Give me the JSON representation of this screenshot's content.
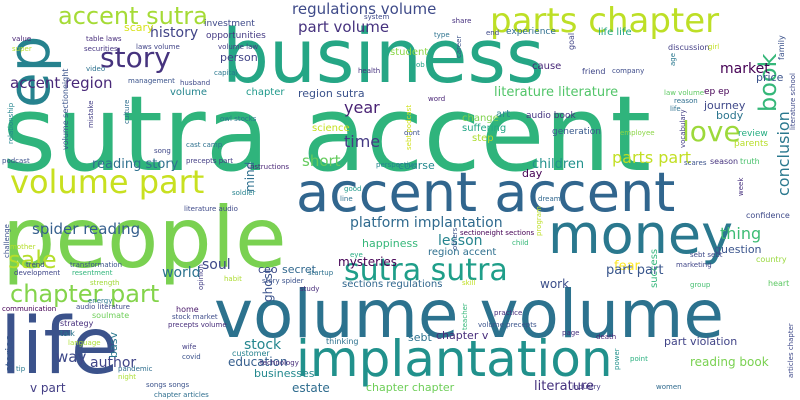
{
  "words": [
    {
      "text": "sutra accent",
      "color": "#2fb47c"
    },
    {
      "text": "business",
      "color": "#25a685"
    },
    {
      "text": "people",
      "color": "#7ad151"
    },
    {
      "text": "volume volume",
      "color": "#2c728e"
    },
    {
      "text": "accent accent",
      "color": "#31668e"
    },
    {
      "text": "implantation",
      "color": "#21918c"
    },
    {
      "text": "money",
      "color": "#2a788e"
    },
    {
      "text": "life",
      "color": "#3b528b"
    },
    {
      "text": "ep",
      "color": "#26828e"
    },
    {
      "text": "parts chapter",
      "color": "#bddf26"
    },
    {
      "text": "accent sutra",
      "color": "#a5db36"
    },
    {
      "text": "story",
      "color": "#46337e"
    },
    {
      "text": "volume part",
      "color": "#c8e020"
    },
    {
      "text": "sutra sutra",
      "color": "#1f9e89"
    },
    {
      "text": "love",
      "color": "#9dd93b"
    },
    {
      "text": "chapter part",
      "color": "#84d44b"
    },
    {
      "text": "book",
      "color": "#35b779"
    },
    {
      "text": "regulations volume",
      "color": "#3e4a89"
    },
    {
      "text": "part volume",
      "color": "#46327e"
    },
    {
      "text": "history",
      "color": "#414487"
    },
    {
      "text": "accent region",
      "color": "#482878"
    },
    {
      "text": "region sutra",
      "color": "#3b528b"
    },
    {
      "text": "spider reading",
      "color": "#355f8d"
    },
    {
      "text": "platform implantation",
      "color": "#306a8e"
    },
    {
      "text": "reading story",
      "color": "#2d708e"
    },
    {
      "text": "literature literature",
      "color": "#52c569"
    },
    {
      "text": "conclusion",
      "color": "#2a788e"
    },
    {
      "text": "market",
      "color": "#440154"
    },
    {
      "text": "year",
      "color": "#482173"
    },
    {
      "text": "time",
      "color": "#443983"
    },
    {
      "text": "short",
      "color": "#65cb5e"
    },
    {
      "text": "mind",
      "color": "#2e6f8e"
    },
    {
      "text": "soul",
      "color": "#3e4989"
    },
    {
      "text": "world",
      "color": "#2c728e"
    },
    {
      "text": "sale",
      "color": "#b5de2b"
    },
    {
      "text": "lesson",
      "color": "#25848e"
    },
    {
      "text": "happiness",
      "color": "#35b779"
    },
    {
      "text": "stock",
      "color": "#24868e"
    },
    {
      "text": "ceo",
      "color": "#3e4c8a"
    },
    {
      "text": "secret",
      "color": "#31688e"
    },
    {
      "text": "course",
      "color": "#23898e"
    },
    {
      "text": "children",
      "color": "#21918c"
    },
    {
      "text": "day",
      "color": "#440154"
    },
    {
      "text": "thing",
      "color": "#3dbc74"
    },
    {
      "text": "fear",
      "color": "#fde725"
    },
    {
      "text": "part part",
      "color": "#39568c"
    },
    {
      "text": "parts part",
      "color": "#c2df23"
    },
    {
      "text": "work",
      "color": "#3c4f8a"
    },
    {
      "text": "author",
      "color": "#404588"
    },
    {
      "text": "education",
      "color": "#355e8d"
    },
    {
      "text": "businesses",
      "color": "#23888e"
    },
    {
      "text": "literature",
      "color": "#46327e"
    },
    {
      "text": "reading book",
      "color": "#7ad151"
    },
    {
      "text": "chapter chapter",
      "color": "#6ece58"
    },
    {
      "text": "stories",
      "color": "#38588c"
    },
    {
      "text": "way",
      "color": "#3e4989"
    },
    {
      "text": "basv",
      "color": "#2a788e"
    },
    {
      "text": "estate",
      "color": "#2f6c8e"
    },
    {
      "text": "person",
      "color": "#414487"
    },
    {
      "text": "experience",
      "color": "#2e6e8e"
    },
    {
      "text": "life life",
      "color": "#21a585"
    },
    {
      "text": "science",
      "color": "#c5e021"
    },
    {
      "text": "chapter",
      "color": "#1f998a"
    },
    {
      "text": "volume",
      "color": "#25858e"
    },
    {
      "text": "ghost",
      "color": "#3b528b"
    },
    {
      "text": "mysteries",
      "color": "#440154"
    },
    {
      "text": "sections regulations",
      "color": "#31678e"
    },
    {
      "text": "chapter v",
      "color": "#472d7b"
    },
    {
      "text": "part violation",
      "color": "#414487"
    },
    {
      "text": "sebt",
      "color": "#2c718e"
    },
    {
      "text": "success",
      "color": "#32b67a"
    },
    {
      "text": "question",
      "color": "#3a548c"
    },
    {
      "text": "scary",
      "color": "#d8e219"
    },
    {
      "text": "investment",
      "color": "#3e4989"
    },
    {
      "text": "opportunities",
      "color": "#443983"
    },
    {
      "text": "journey",
      "color": "#3f4889"
    },
    {
      "text": "student",
      "color": "#8bd646"
    },
    {
      "text": "price",
      "color": "#3b528b"
    },
    {
      "text": "audio book",
      "color": "#453581"
    },
    {
      "text": "generation",
      "color": "#38598c"
    },
    {
      "text": "cause",
      "color": "#482878"
    },
    {
      "text": "art",
      "color": "#24878e"
    },
    {
      "text": "change",
      "color": "#7fd34e"
    },
    {
      "text": "suffering",
      "color": "#21a685"
    },
    {
      "text": "step",
      "color": "#addc30"
    },
    {
      "text": "review",
      "color": "#26ad81"
    },
    {
      "text": "parents",
      "color": "#b8de29"
    },
    {
      "text": "season",
      "color": "#46337e"
    },
    {
      "text": "truth",
      "color": "#4ac16d"
    },
    {
      "text": "body",
      "color": "#2b758e"
    },
    {
      "text": "confidence",
      "color": "#3e4a89"
    },
    {
      "text": "country",
      "color": "#99d83d"
    },
    {
      "text": "heart",
      "color": "#5cc863"
    },
    {
      "text": "family",
      "color": "#3b528b"
    },
    {
      "text": "ep ep",
      "color": "#440154"
    },
    {
      "text": "law volume",
      "color": "#5ec962"
    },
    {
      "text": "reason",
      "color": "#2e6e8e"
    },
    {
      "text": "friend",
      "color": "#3f4788"
    },
    {
      "text": "company",
      "color": "#3e4c8a"
    },
    {
      "text": "discussion",
      "color": "#433e85"
    },
    {
      "text": "goal",
      "color": "#414487"
    },
    {
      "text": "health",
      "color": "#46327e"
    },
    {
      "text": "job",
      "color": "#1fa187"
    },
    {
      "text": "word",
      "color": "#482475"
    },
    {
      "text": "dont",
      "color": "#3c4f8a"
    },
    {
      "text": "perspective",
      "color": "#25858e"
    },
    {
      "text": "good",
      "color": "#1f9a8a"
    },
    {
      "text": "line",
      "color": "#2c718e"
    },
    {
      "text": "dream",
      "color": "#31678e"
    },
    {
      "text": "week",
      "color": "#46307e"
    },
    {
      "text": "eye",
      "color": "#25ac82"
    },
    {
      "text": "skill",
      "color": "#c0df25"
    },
    {
      "text": "child",
      "color": "#36b878"
    },
    {
      "text": "sectioneight sections",
      "color": "#440154"
    },
    {
      "text": "region accent",
      "color": "#2e6f8e"
    },
    {
      "text": "sebt sebt",
      "color": "#3e4989"
    },
    {
      "text": "marketing",
      "color": "#404688"
    },
    {
      "text": "group",
      "color": "#44bf70"
    },
    {
      "text": "startup",
      "color": "#2d708e"
    },
    {
      "text": "study",
      "color": "#472c7a"
    },
    {
      "text": "story spider",
      "color": "#3b528b"
    },
    {
      "text": "practice",
      "color": "#472d7b"
    },
    {
      "text": "volume precepts",
      "color": "#3a538b"
    },
    {
      "text": "teacher",
      "color": "#35b779"
    },
    {
      "text": "page",
      "color": "#46307e"
    },
    {
      "text": "death",
      "color": "#482475"
    },
    {
      "text": "point",
      "color": "#2ab07f"
    },
    {
      "text": "power",
      "color": "#21918c"
    },
    {
      "text": "women",
      "color": "#306a8e"
    },
    {
      "text": "industry",
      "color": "#443b84"
    },
    {
      "text": "thinking",
      "color": "#2c718e"
    },
    {
      "text": "songs songs",
      "color": "#3b528b"
    },
    {
      "text": "chapter articles",
      "color": "#2e6e8e"
    },
    {
      "text": "technology",
      "color": "#472c7a"
    },
    {
      "text": "customer",
      "color": "#26818e"
    },
    {
      "text": "home",
      "color": "#48186a"
    },
    {
      "text": "stock market",
      "color": "#3e4c8a"
    },
    {
      "text": "precepts volume",
      "color": "#472d7b"
    },
    {
      "text": "soulmate",
      "color": "#6ece58"
    },
    {
      "text": "strategy",
      "color": "#472f7d"
    },
    {
      "text": "talk",
      "color": "#2b748e"
    },
    {
      "text": "language",
      "color": "#ade036"
    },
    {
      "text": "energy",
      "color": "#2a778e"
    },
    {
      "text": "audio literature",
      "color": "#3e4989"
    },
    {
      "text": "communication",
      "color": "#440154"
    },
    {
      "text": "strength",
      "color": "#a2da37"
    },
    {
      "text": "resentment",
      "color": "#31b57b"
    },
    {
      "text": "transformation",
      "color": "#3b528b"
    },
    {
      "text": "development",
      "color": "#3f4788"
    },
    {
      "text": "trend",
      "color": "#3e4989"
    },
    {
      "text": "challenge",
      "color": "#3b528b"
    },
    {
      "text": "mother",
      "color": "#b5de2b"
    },
    {
      "text": "program",
      "color": "#bddf26"
    },
    {
      "text": "others",
      "color": "#3b528b"
    },
    {
      "text": "opinion",
      "color": "#433e85"
    },
    {
      "text": "habit",
      "color": "#addc30"
    },
    {
      "text": "literature audio",
      "color": "#3e4989"
    },
    {
      "text": "soldier",
      "color": "#26828e"
    },
    {
      "text": "instructions",
      "color": "#482475"
    },
    {
      "text": "precepts part",
      "color": "#433e85"
    },
    {
      "text": "cast camp",
      "color": "#2d708e"
    },
    {
      "text": "owl stocks",
      "color": "#2a788e"
    },
    {
      "text": "song",
      "color": "#3f4788"
    },
    {
      "text": "podcast",
      "color": "#3b528b"
    },
    {
      "text": "mistake",
      "color": "#433e85"
    },
    {
      "text": "culture",
      "color": "#2e6e8e"
    },
    {
      "text": "management",
      "color": "#3a538b"
    },
    {
      "text": "husband",
      "color": "#3e4989"
    },
    {
      "text": "capital",
      "color": "#2a788e"
    },
    {
      "text": "volume law",
      "color": "#433e85"
    },
    {
      "text": "laws volume",
      "color": "#414487"
    },
    {
      "text": "securities",
      "color": "#453581"
    },
    {
      "text": "table laws",
      "color": "#472d7b"
    },
    {
      "text": "video",
      "color": "#2c718e"
    },
    {
      "text": "value",
      "color": "#482475"
    },
    {
      "text": "super",
      "color": "#b8de29"
    },
    {
      "text": "volume sectioneight",
      "color": "#3a538b"
    },
    {
      "text": "relationship",
      "color": "#25858e"
    },
    {
      "text": "system",
      "color": "#3e4989"
    },
    {
      "text": "share",
      "color": "#46307e"
    },
    {
      "text": "type",
      "color": "#2c728e"
    },
    {
      "text": "career",
      "color": "#3b528b"
    },
    {
      "text": "end",
      "color": "#3e4989"
    },
    {
      "text": "sebt podcast",
      "color": "#d0e11c"
    },
    {
      "text": "girl",
      "color": "#c0df25"
    },
    {
      "text": "literature school",
      "color": "#3e4989"
    },
    {
      "text": "vocabulary",
      "color": "#433e85"
    },
    {
      "text": "articles chapter",
      "color": "#3e4989"
    },
    {
      "text": "age",
      "color": "#2a788e"
    },
    {
      "text": "employee",
      "color": "#8bd646"
    },
    {
      "text": "scares",
      "color": "#3b528b"
    },
    {
      "text": "life",
      "color": "#2d708e"
    },
    {
      "text": "wife",
      "color": "#433e85"
    },
    {
      "text": "covid",
      "color": "#3b528b"
    },
    {
      "text": "pandemic",
      "color": "#2e6e8e"
    },
    {
      "text": "tip",
      "color": "#2a788e"
    },
    {
      "text": "v part",
      "color": "#433e85"
    },
    {
      "text": "night",
      "color": "#ade036"
    }
  ]
}
